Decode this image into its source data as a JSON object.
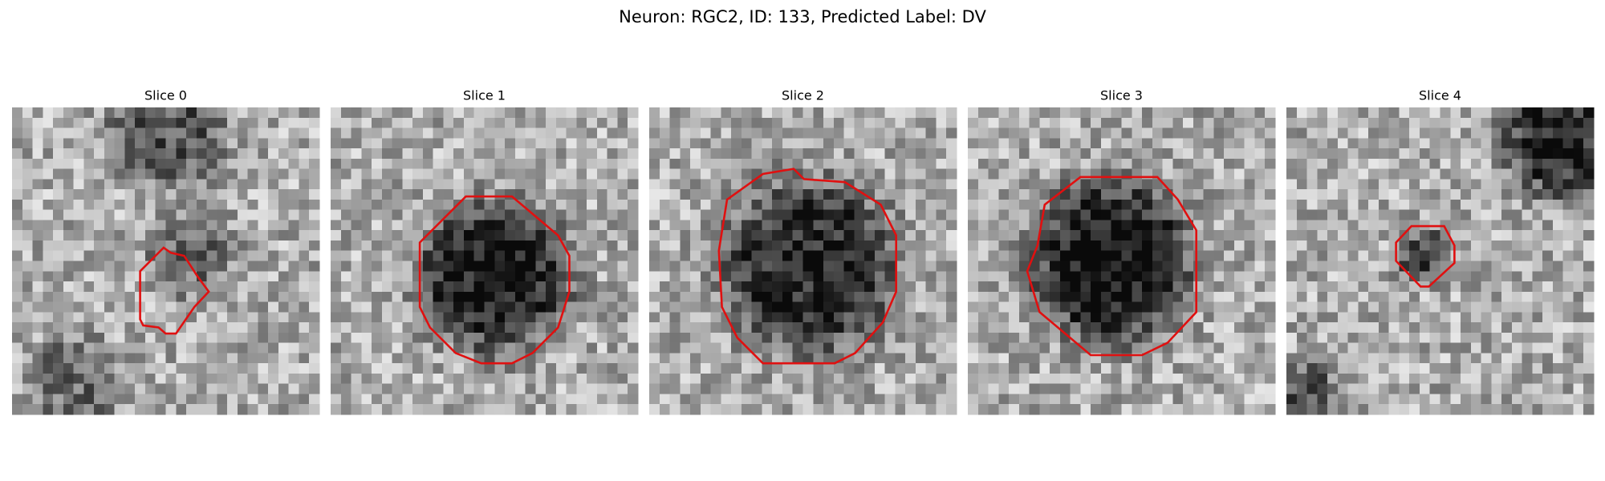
{
  "header": {
    "title": "Neuron: RGC2, ID: 133, Predicted Label: DV"
  },
  "panels": [
    {
      "title": "Slice 0"
    },
    {
      "title": "Slice 1"
    },
    {
      "title": "Slice 2"
    },
    {
      "title": "Slice 3"
    },
    {
      "title": "Slice 4"
    }
  ]
}
